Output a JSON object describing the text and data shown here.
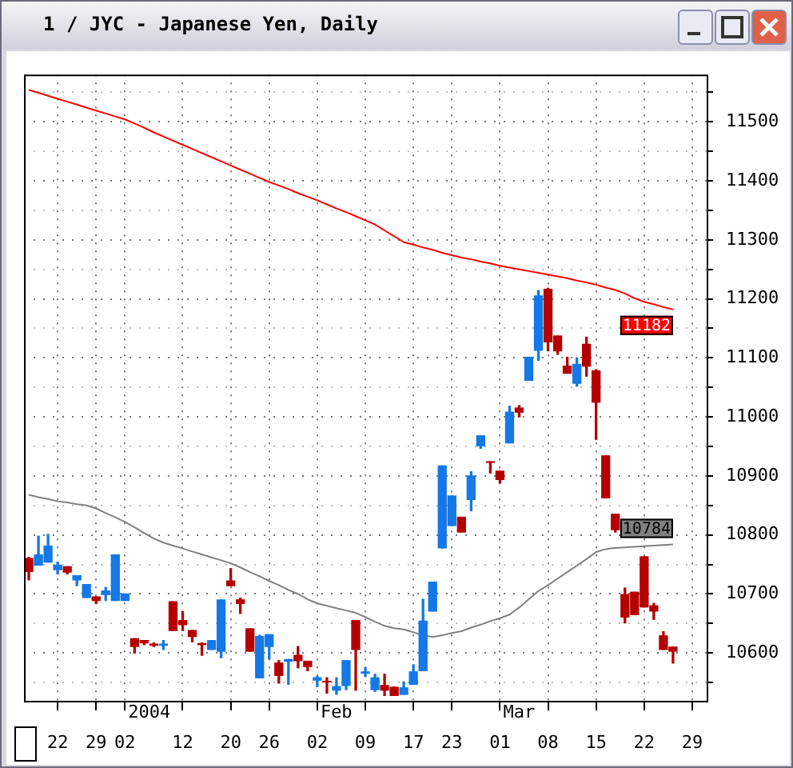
{
  "chart_data": {
    "type": "candlestick",
    "title": "1 / JYC - Japanese Yen, Daily",
    "categories": [
      null,
      null,
      null,
      "22",
      null,
      null,
      null,
      "29",
      null,
      null,
      "02",
      null,
      null,
      null,
      null,
      null,
      "12",
      null,
      null,
      null,
      null,
      "20",
      null,
      null,
      null,
      "26",
      null,
      null,
      null,
      null,
      "02",
      null,
      null,
      null,
      null,
      "09",
      null,
      null,
      null,
      null,
      "17",
      null,
      null,
      null,
      "23",
      null,
      null,
      null,
      null,
      "01",
      null,
      null,
      null,
      null,
      "08",
      null,
      null,
      null,
      null,
      "15",
      null,
      null,
      null,
      null,
      "22",
      null,
      null,
      null,
      null,
      "29",
      null
    ],
    "ohlc": [
      [
        10760,
        10762,
        10724,
        10738
      ],
      [
        10749,
        10798,
        10749,
        10766
      ],
      [
        10754,
        10801,
        10754,
        10781
      ],
      [
        10741,
        10754,
        10734,
        10749
      ],
      [
        10746,
        10746,
        10734,
        10737
      ],
      [
        10724,
        10731,
        10714,
        10731
      ],
      [
        10694,
        10716,
        10694,
        10716
      ],
      [
        10695,
        10695,
        10684,
        10689
      ],
      [
        10699,
        10711,
        10689,
        10705
      ],
      [
        10689,
        10766,
        10689,
        10766
      ],
      [
        10689,
        10700,
        10689,
        10700
      ],
      [
        10624,
        10624,
        10600,
        10611
      ],
      [
        10621,
        10621,
        10614,
        10617
      ],
      [
        10615,
        10617,
        10611,
        10613
      ],
      [
        10613,
        10621,
        10606,
        10615
      ],
      [
        10687,
        10687,
        10638,
        10638
      ],
      [
        10655,
        10670,
        10638,
        10648
      ],
      [
        10638,
        10638,
        10619,
        10628
      ],
      [
        10616,
        10617,
        10596,
        10614
      ],
      [
        10606,
        10621,
        10606,
        10621
      ],
      [
        10603,
        10690,
        10592,
        10690
      ],
      [
        10722,
        10743,
        10714,
        10714
      ],
      [
        10690,
        10693,
        10667,
        10684
      ],
      [
        10641,
        10641,
        10603,
        10603
      ],
      [
        10558,
        10630,
        10558,
        10628
      ],
      [
        10611,
        10631,
        10590,
        10631
      ],
      [
        10583,
        10587,
        10549,
        10562
      ],
      [
        10586,
        10589,
        10547,
        10589
      ],
      [
        10596,
        10611,
        10575,
        10587
      ],
      [
        10586,
        10586,
        10570,
        10577
      ],
      [
        10554,
        10560,
        10543,
        10558
      ],
      [
        10552,
        10558,
        10532,
        10551
      ],
      [
        10537,
        10558,
        10530,
        10543
      ],
      [
        10545,
        10587,
        10538,
        10587
      ],
      [
        10655,
        10655,
        10537,
        10606
      ],
      [
        10566,
        10575,
        10560,
        10568
      ],
      [
        10538,
        10564,
        10535,
        10558
      ],
      [
        10545,
        10564,
        10528,
        10537
      ],
      [
        10542,
        10542,
        10528,
        10528
      ],
      [
        10530,
        10551,
        10530,
        10541
      ],
      [
        10547,
        10580,
        10547,
        10568
      ],
      [
        10570,
        10691,
        10570,
        10654
      ],
      [
        10671,
        10720,
        10671,
        10720
      ],
      [
        10778,
        10917,
        10778,
        10917
      ],
      [
        10816,
        10866,
        10816,
        10866
      ],
      [
        10830,
        10830,
        10805,
        10805
      ],
      [
        10860,
        10907,
        10841,
        10900
      ],
      [
        10951,
        10968,
        10947,
        10968
      ],
      [
        10924,
        10924,
        10905,
        10923
      ],
      [
        10908,
        10908,
        10888,
        10894
      ],
      [
        10956,
        11018,
        10956,
        11008
      ],
      [
        11015,
        11019,
        11000,
        11008
      ],
      [
        11062,
        11101,
        11062,
        11101
      ],
      [
        11113,
        11214,
        11096,
        11205
      ],
      [
        11216,
        11218,
        11112,
        11127
      ],
      [
        11137,
        11137,
        11106,
        11112
      ],
      [
        11086,
        11101,
        11074,
        11074
      ],
      [
        11057,
        11100,
        11052,
        11089
      ],
      [
        11123,
        11135,
        11069,
        11086
      ],
      [
        11078,
        11080,
        10962,
        11025
      ],
      [
        10934,
        10934,
        10863,
        10863
      ],
      [
        10835,
        10835,
        10805,
        10809
      ],
      [
        10699,
        10710,
        10651,
        10661
      ],
      [
        10703,
        10703,
        10665,
        10665
      ],
      [
        10763,
        10763,
        10678,
        10678
      ],
      [
        10680,
        10684,
        10657,
        10671
      ],
      [
        10629,
        10636,
        10606,
        10606
      ],
      [
        10610,
        10610,
        10583,
        10603
      ],
      null,
      null,
      null
    ],
    "colors": [
      "#b40000",
      "#1478e6",
      "#1478e6",
      "#1478e6",
      "#b40000",
      "#1478e6",
      "#1478e6",
      "#b40000",
      "#1478e6",
      "#1478e6",
      "#1478e6",
      "#b40000",
      "#b40000",
      "#b40000",
      "#1478e6",
      "#b40000",
      "#b40000",
      "#b40000",
      "#b40000",
      "#1478e6",
      "#1478e6",
      "#b40000",
      "#b40000",
      "#b40000",
      "#1478e6",
      "#1478e6",
      "#b40000",
      "#1478e6",
      "#b40000",
      "#b40000",
      "#1478e6",
      "#b40000",
      "#1478e6",
      "#1478e6",
      "#b40000",
      "#1478e6",
      "#1478e6",
      "#b40000",
      "#b40000",
      "#1478e6",
      "#1478e6",
      "#1478e6",
      "#1478e6",
      "#1478e6",
      "#1478e6",
      "#b40000",
      "#1478e6",
      "#1478e6",
      "#b40000",
      "#b40000",
      "#1478e6",
      "#b40000",
      "#1478e6",
      "#1478e6",
      "#b40000",
      "#b40000",
      "#b40000",
      "#1478e6",
      "#b40000",
      "#b40000",
      "#b40000",
      "#b40000",
      "#b40000",
      "#b40000",
      "#b40000",
      "#b40000",
      "#b40000",
      "#b40000",
      null,
      null,
      null
    ],
    "series": [
      {
        "type": "line",
        "color": "#ff0000",
        "values": [
          11554,
          11549,
          11544,
          11539,
          11534,
          11529,
          11524,
          11519,
          11514,
          11509,
          11504,
          11497,
          11490,
          11482,
          11475,
          11468,
          11461,
          11454,
          11447,
          11440,
          11433,
          11426,
          11419,
          11412,
          11405,
          11398,
          11392,
          11386,
          11379,
          11373,
          11367,
          11360,
          11353,
          11347,
          11340,
          11333,
          11326,
          11316,
          11306,
          11296,
          11292,
          11287,
          11283,
          11278,
          11274,
          11270,
          11267,
          11263,
          11260,
          11256,
          11253,
          11250,
          11247,
          11244,
          11241,
          11238,
          11235,
          11231,
          11228,
          11224,
          11219,
          11215,
          11209,
          11201,
          11195,
          11191,
          11186,
          11182,
          null,
          null,
          null
        ],
        "value_labels": [
          null,
          null,
          null,
          null,
          null,
          null,
          null,
          null,
          null,
          null,
          null,
          null,
          null,
          null,
          null,
          null,
          null,
          null,
          null,
          null,
          null,
          null,
          null,
          null,
          null,
          null,
          null,
          null,
          null,
          null,
          null,
          null,
          null,
          null,
          null,
          null,
          null,
          null,
          null,
          null,
          null,
          null,
          null,
          null,
          null,
          null,
          null,
          null,
          null,
          null,
          null,
          null,
          null,
          null,
          null,
          null,
          null,
          null,
          null,
          null,
          null,
          null,
          null,
          null,
          null,
          null,
          null,
          "11182",
          null,
          null,
          null
        ]
      },
      {
        "type": "line",
        "color": "#808080",
        "values": [
          10868,
          10864,
          10861,
          10857,
          10855,
          10852,
          10850,
          10845,
          10837,
          10830,
          10822,
          10813,
          10803,
          10794,
          10787,
          10782,
          10777,
          10772,
          10767,
          10762,
          10757,
          10752,
          10745,
          10737,
          10730,
          10722,
          10715,
          10707,
          10700,
          10691,
          10684,
          10680,
          10676,
          10672,
          10668,
          10661,
          10653,
          10646,
          10642,
          10640,
          10635,
          10630,
          10627,
          10630,
          10634,
          10637,
          10643,
          10648,
          10654,
          10659,
          10665,
          10677,
          10691,
          10705,
          10715,
          10726,
          10737,
          10748,
          10759,
          10771,
          10776,
          10778,
          10779,
          10780,
          10781,
          10782,
          10783,
          10784,
          null,
          null,
          null
        ],
        "value_labels": [
          null,
          null,
          null,
          null,
          null,
          null,
          null,
          null,
          null,
          null,
          null,
          null,
          null,
          null,
          null,
          null,
          null,
          null,
          null,
          null,
          null,
          null,
          null,
          null,
          null,
          null,
          null,
          null,
          null,
          null,
          null,
          null,
          null,
          null,
          null,
          null,
          null,
          null,
          null,
          null,
          null,
          null,
          null,
          null,
          null,
          null,
          null,
          null,
          null,
          null,
          null,
          null,
          null,
          null,
          null,
          null,
          null,
          null,
          null,
          null,
          null,
          null,
          null,
          null,
          null,
          null,
          null,
          "10784",
          null,
          null,
          null
        ]
      }
    ],
    "annotations": [
      "2004",
      "Feb",
      "Mar"
    ],
    "ylim": [
      10519,
      11580
    ],
    "yticks": [
      {
        "value": 10550,
        "label": null
      },
      10600,
      {
        "value": 10650,
        "label": null
      },
      10700,
      {
        "value": 10750,
        "label": null
      },
      10800,
      {
        "value": 10850,
        "label": null
      },
      10900,
      {
        "value": 10950,
        "label": null
      },
      11000,
      {
        "value": 11050,
        "label": null
      },
      11100,
      {
        "value": 11150,
        "label": null
      },
      11200,
      {
        "value": 11250,
        "label": null
      },
      11300,
      {
        "value": 11350,
        "label": null
      },
      11400,
      {
        "value": 11450,
        "label": null
      },
      11500,
      {
        "value": 11550,
        "label": null
      }
    ],
    "grid": true
  }
}
